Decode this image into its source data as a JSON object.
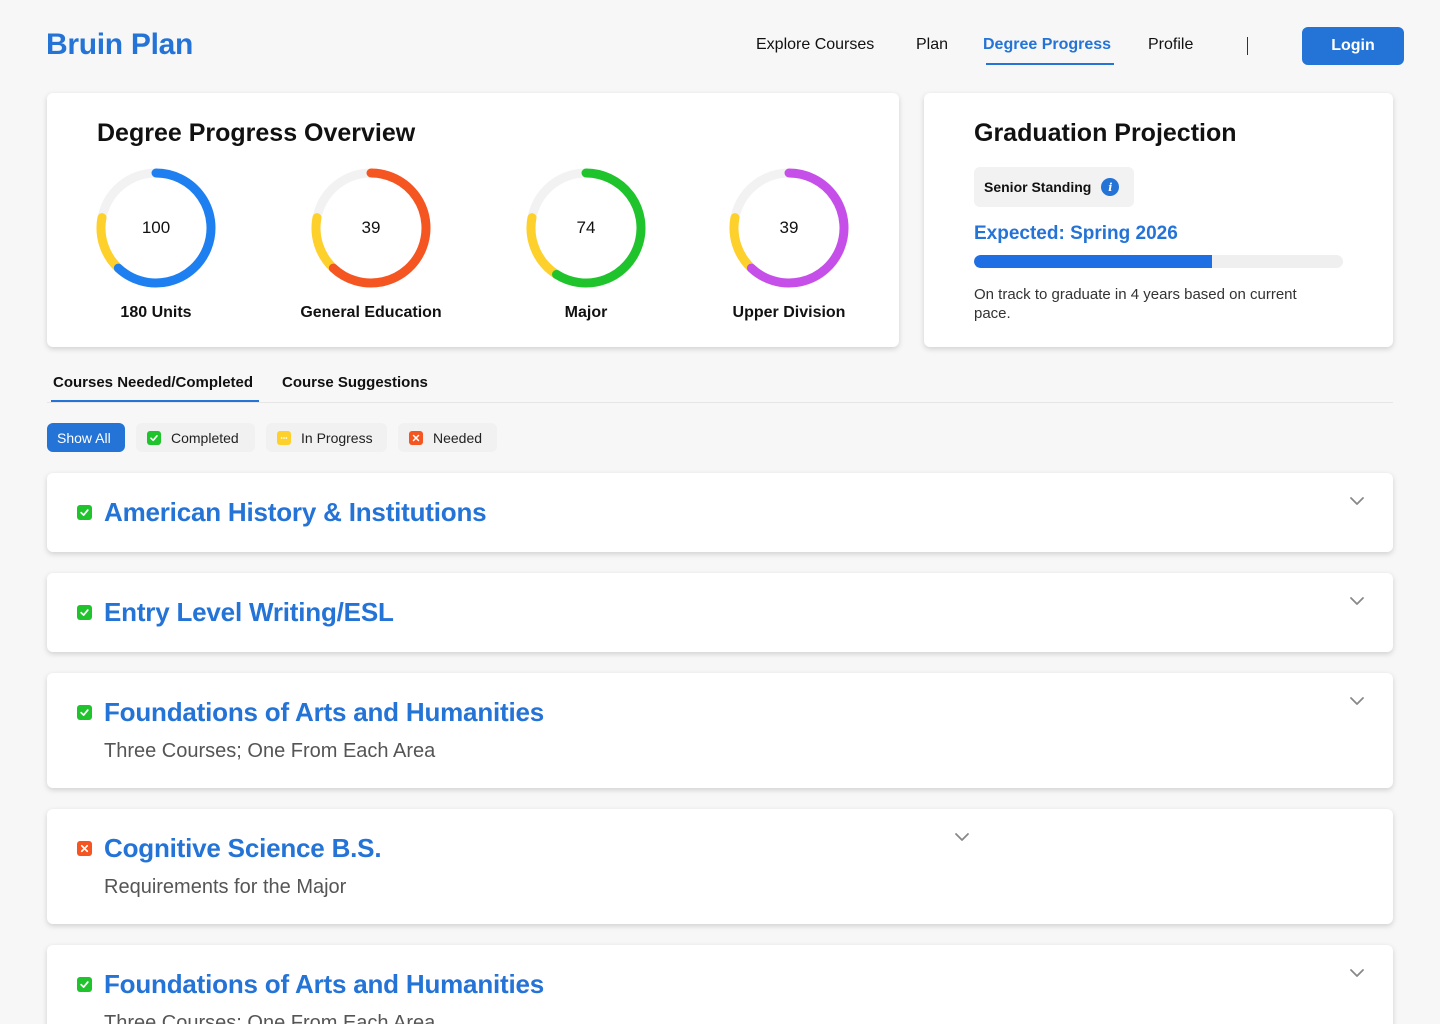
{
  "brand": "Bruin Plan",
  "nav": {
    "items": [
      "Explore Courses",
      "Plan",
      "Degree Progress",
      "Profile"
    ],
    "separator": "|",
    "login": "Login"
  },
  "overview": {
    "title": "Degree Progress Overview",
    "rings": [
      {
        "value": "100",
        "label": "180 Units",
        "color": "#1e80f0",
        "progress": 0.62
      },
      {
        "value": "39",
        "label": "General Education",
        "color": "#f55521",
        "progress": 0.62
      },
      {
        "value": "74",
        "label": "Major",
        "color": "#1fc42c",
        "progress": 0.59
      },
      {
        "value": "39",
        "label": "Upper Division",
        "color": "#c54fe8",
        "progress": 0.62
      }
    ],
    "in_progress_color": "#fdd02b",
    "track_color": "#f2f2f2"
  },
  "graduation": {
    "title": "Graduation Projection",
    "standing": "Senior Standing",
    "expected": "Expected: Spring 2026",
    "progress": 0.645,
    "note": "On track to graduate in 4 years based on current pace."
  },
  "tabs": [
    "Courses Needed/Completed",
    "Course Suggestions"
  ],
  "filters": {
    "show_all": "Show All",
    "completed": "Completed",
    "in_progress": "In Progress",
    "needed": "Needed"
  },
  "colors": {
    "accent": "#2473d6",
    "completed": "#1fc42c",
    "in_progress": "#fdd02b",
    "needed": "#f55521"
  },
  "sections": [
    {
      "status": "completed",
      "title": "American History & Institutions",
      "subtitle": ""
    },
    {
      "status": "completed",
      "title": "Entry Level Writing/ESL",
      "subtitle": ""
    },
    {
      "status": "completed",
      "title": "Foundations of Arts and Humanities",
      "subtitle": "Three Courses; One From Each Area"
    },
    {
      "status": "needed",
      "title": "Cognitive Science B.S.",
      "subtitle": "Requirements for the Major"
    },
    {
      "status": "completed",
      "title": "Foundations of Arts and Humanities",
      "subtitle": "Three Courses; One From Each Area"
    }
  ]
}
